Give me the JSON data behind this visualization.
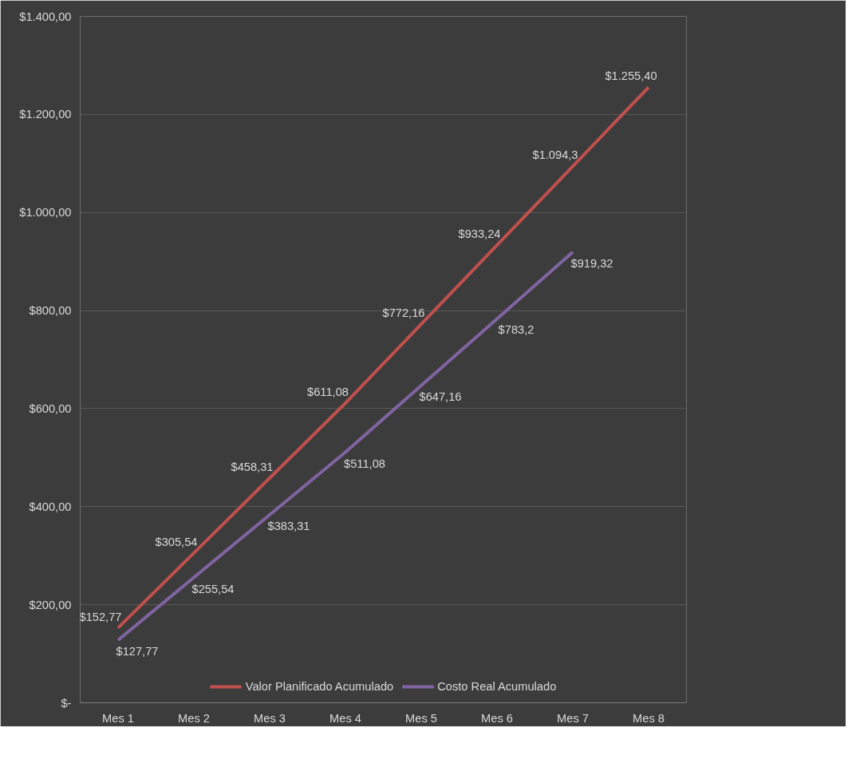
{
  "chart_data": {
    "type": "line",
    "categories": [
      "Mes 1",
      "Mes 2",
      "Mes 3",
      "Mes 4",
      "Mes 5",
      "Mes 6",
      "Mes 7",
      "Mes 8"
    ],
    "series": [
      {
        "name": "Valor Planificado Acumulado",
        "color": "#c0504d",
        "values": [
          152.77,
          305.54,
          458.31,
          611.08,
          772.16,
          933.24,
          1094.3,
          1255.4
        ],
        "value_labels": [
          "$152,77",
          "$305,54",
          "$458,31",
          "$611,08",
          "$772,16",
          "$933,24",
          "$1.094,3",
          "$1.255,40"
        ]
      },
      {
        "name": "Costo Real Acumulado",
        "color": "#8064a2",
        "values": [
          127.77,
          255.54,
          383.31,
          511.08,
          647.16,
          783.2,
          919.32,
          null
        ],
        "value_labels": [
          "$127,77",
          "$255,54",
          "$383,31",
          "$511,08",
          "$647,16",
          "$783,2",
          "$919,32",
          null
        ]
      }
    ],
    "ylim": [
      0,
      1400
    ],
    "yticks": [
      {
        "value": 0,
        "label": "$-"
      },
      {
        "value": 200,
        "label": "$200,00"
      },
      {
        "value": 400,
        "label": "$400,00"
      },
      {
        "value": 600,
        "label": "$600,00"
      },
      {
        "value": 800,
        "label": "$800,00"
      },
      {
        "value": 1000,
        "label": "$1.000,00"
      },
      {
        "value": 1200,
        "label": "$1.200,00"
      },
      {
        "value": 1400,
        "label": "$1.400,00"
      }
    ],
    "grid": "y",
    "legend": "bottom",
    "marker": "none",
    "line_style": "solid"
  }
}
